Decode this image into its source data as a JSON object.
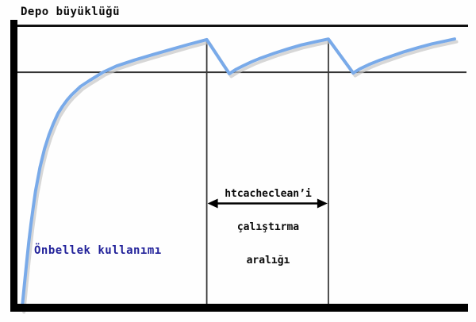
{
  "title": "Depo büyüklüğü",
  "labels": {
    "curve": "Önbellek kullanımı",
    "interval_line1": "htcacheclean’i",
    "interval_line2": "çalıştırma",
    "interval_line3": "aralığı"
  },
  "colors": {
    "axis": "#000000",
    "limit_line": "#111111",
    "threshold_line": "#333333",
    "cleanup_line": "#3a3a3a",
    "curve": "#79aae9",
    "curve_shadow": "#c6c6c6",
    "curve_label_text": "#22229a",
    "arrow": "#000000"
  },
  "chart_data": {
    "type": "line",
    "title": "Depo büyüklüğü",
    "xlabel": "",
    "ylabel": "",
    "xlim": [
      0,
      100
    ],
    "ylim": [
      0,
      1
    ],
    "grid": false,
    "legend_position": "none",
    "storage_limit_level": 1.0,
    "threshold_level": 0.835,
    "cleanup_run_times": [
      42,
      69
    ],
    "annotations": [
      {
        "text": "htcacheclean’i çalıştırma aralığı",
        "type": "interval-arrow",
        "from_t": 42,
        "to_t": 69
      }
    ],
    "series": [
      {
        "name": "Önbellek kullanımı",
        "points": [
          [
            1,
            0
          ],
          [
            1.5,
            0.08
          ],
          [
            2,
            0.16
          ],
          [
            2.5,
            0.235
          ],
          [
            3,
            0.3
          ],
          [
            3.5,
            0.36
          ],
          [
            4,
            0.415
          ],
          [
            5,
            0.5
          ],
          [
            6,
            0.565
          ],
          [
            7,
            0.615
          ],
          [
            8,
            0.655
          ],
          [
            9,
            0.69
          ],
          [
            10,
            0.715
          ],
          [
            11,
            0.737
          ],
          [
            12,
            0.755
          ],
          [
            14,
            0.785
          ],
          [
            16,
            0.806
          ],
          [
            19,
            0.835
          ],
          [
            22,
            0.857
          ],
          [
            26,
            0.878
          ],
          [
            30,
            0.897
          ],
          [
            34,
            0.915
          ],
          [
            38,
            0.933
          ],
          [
            42,
            0.95
          ],
          [
            47,
            0.83
          ],
          [
            48.5,
            0.845
          ],
          [
            50,
            0.857
          ],
          [
            52,
            0.872
          ],
          [
            54,
            0.885
          ],
          [
            57,
            0.902
          ],
          [
            60,
            0.917
          ],
          [
            63,
            0.931
          ],
          [
            66,
            0.942
          ],
          [
            69,
            0.952
          ],
          [
            74.5,
            0.832
          ],
          [
            76,
            0.847
          ],
          [
            78,
            0.862
          ],
          [
            80.5,
            0.878
          ],
          [
            83,
            0.892
          ],
          [
            86,
            0.908
          ],
          [
            89,
            0.922
          ],
          [
            92,
            0.935
          ],
          [
            95,
            0.945
          ],
          [
            97,
            0.952
          ]
        ]
      }
    ]
  }
}
